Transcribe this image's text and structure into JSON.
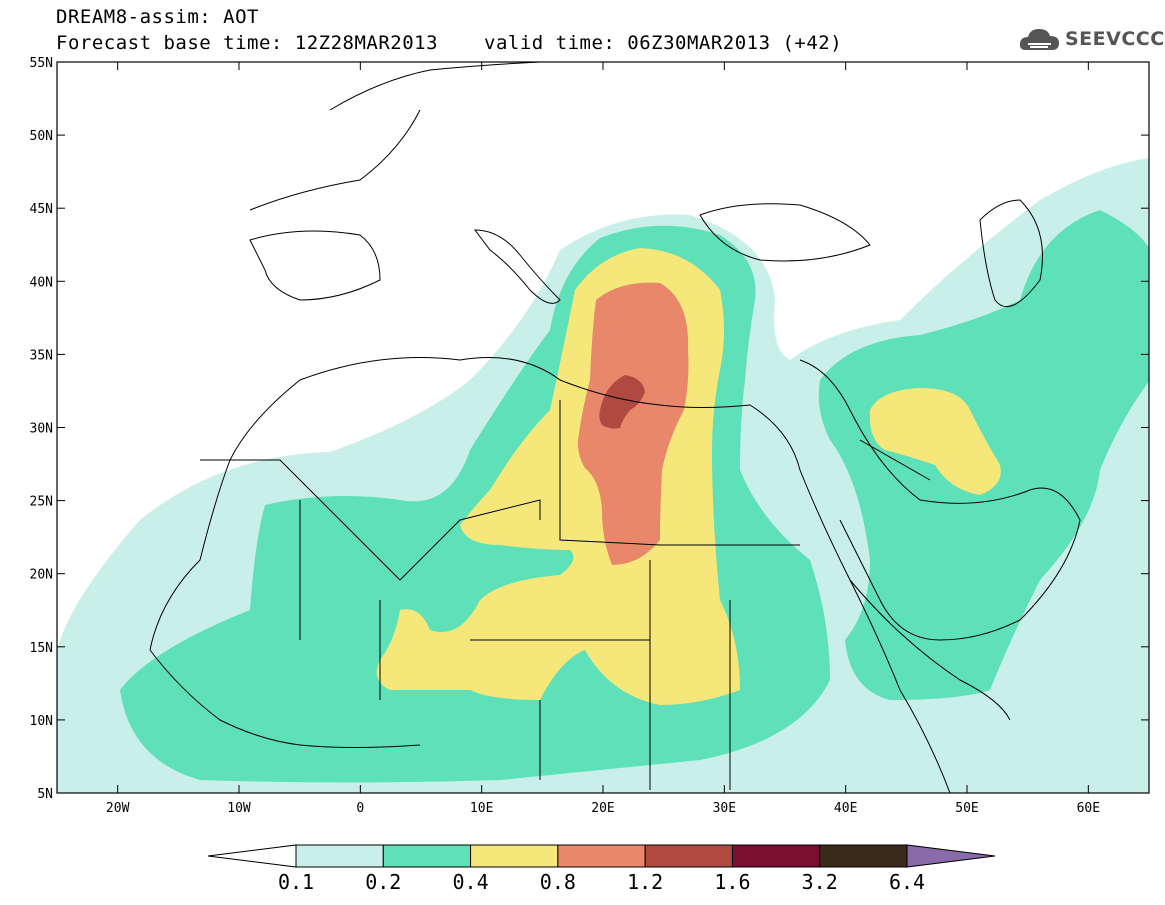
{
  "header": {
    "title": "DREAM8-assim: AOT",
    "base_time": "Forecast base time: 12Z28MAR2013",
    "valid_time": "valid time: 06Z30MAR2013 (+42)"
  },
  "logo": {
    "text": "SEEVCCC",
    "icon": "cloud-icon"
  },
  "map": {
    "lon_range": [
      -25,
      65
    ],
    "lat_range": [
      5,
      55
    ],
    "lat_ticks": [
      "5N",
      "10N",
      "15N",
      "20N",
      "25N",
      "30N",
      "35N",
      "40N",
      "45N",
      "50N",
      "55N"
    ],
    "lon_ticks": [
      "20W",
      "10W",
      "0",
      "10E",
      "20E",
      "30E",
      "40E",
      "50E",
      "60E"
    ]
  },
  "legend": {
    "labels": [
      "0.1",
      "0.2",
      "0.4",
      "0.8",
      "1.2",
      "1.6",
      "3.2",
      "6.4"
    ],
    "colors": [
      "#ffffff",
      "#c8f0e8",
      "#5ee0b8",
      "#f5e77a",
      "#e8876a",
      "#b04a40",
      "#7a1030",
      "#3a2a1a",
      "#8a6aaa"
    ]
  }
}
